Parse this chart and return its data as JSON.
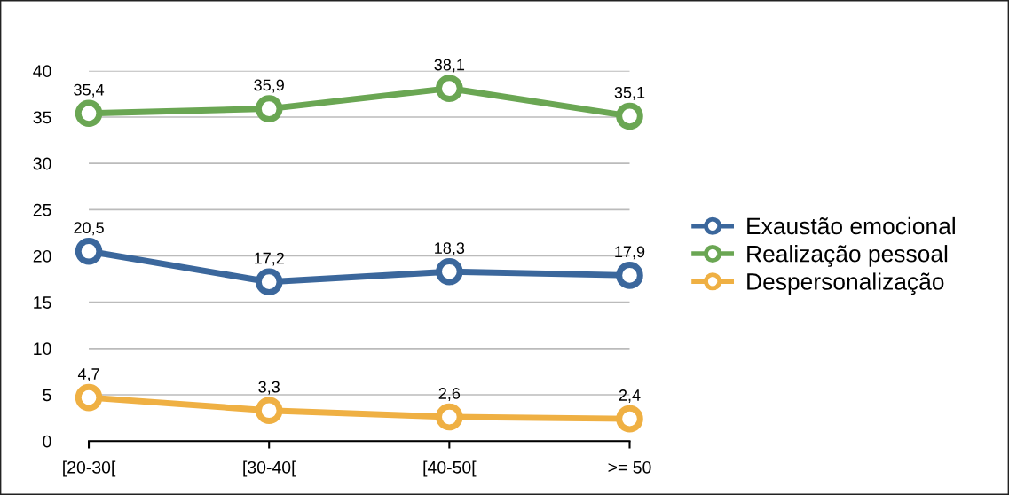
{
  "chart_data": {
    "type": "line",
    "categories": [
      "[20-30[",
      "[30-40[",
      "[40-50[",
      ">= 50"
    ],
    "series": [
      {
        "name": "Exaustão emocional",
        "color": "#3b679c",
        "values": [
          20.5,
          17.2,
          18.3,
          17.9
        ],
        "value_labels": [
          "20,5",
          "17,2",
          "18,3",
          "17,9"
        ]
      },
      {
        "name": "Realização pessoal",
        "color": "#6aa653",
        "values": [
          35.4,
          35.9,
          38.1,
          35.1
        ],
        "value_labels": [
          "35,4",
          "35,9",
          "38,1",
          "35,1"
        ]
      },
      {
        "name": "Despersonalização",
        "color": "#efb043",
        "values": [
          4.7,
          3.3,
          2.6,
          2.4
        ],
        "value_labels": [
          "4,7",
          "3,3",
          "2,6",
          "2,4"
        ]
      }
    ],
    "ylim": [
      0,
      40
    ],
    "yticks": [
      0,
      5,
      10,
      15,
      20,
      25,
      30,
      35,
      40
    ],
    "grid": "y",
    "legend": "right",
    "marker": "circle",
    "line_style": "solid"
  }
}
